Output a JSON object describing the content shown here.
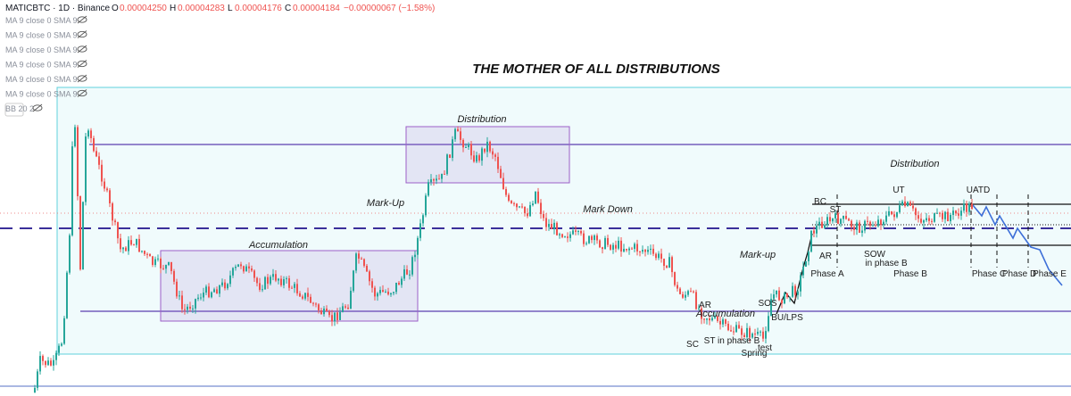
{
  "header": {
    "symbol": "MATICBTC · 1D · Binance",
    "open_key": "O",
    "open": "0.00004250",
    "high_key": "H",
    "high": "0.00004283",
    "low_key": "L",
    "low": "0.00004176",
    "close_key": "C",
    "close": "0.00004184",
    "change": "−0.00000067 (−1.58%)"
  },
  "indicators": [
    "MA 9 close 0 SMA 9",
    "MA 9 close 0 SMA 9",
    "MA 9 close 0 SMA 9",
    "MA 9 close 0 SMA 9",
    "MA 9 close 0 SMA 9",
    "MA 9 close 0 SMA 9",
    "BB 20 2"
  ],
  "title": "THE MOTHER OF ALL DISTRIBUTIONS",
  "annotations": [
    "Accumulation",
    "Distribution",
    "Mark-Up",
    "Mark Down",
    "Accumulation",
    "Mark-up",
    "Distribution",
    "BC",
    "ST",
    "AR",
    "UT",
    "UATD",
    "Phase A",
    "SOW",
    "in phase B",
    "Phase B",
    "Phase C",
    "Phase D",
    "Phase E",
    "AR",
    "SC",
    "ST in phase B",
    "test",
    "Spring",
    "SOS",
    "BU/LPS"
  ]
}
